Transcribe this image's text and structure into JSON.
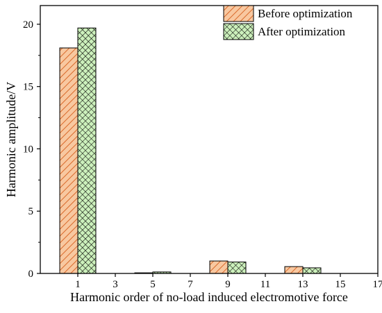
{
  "chart_data": {
    "type": "bar",
    "categories": [
      "1",
      "3",
      "5",
      "7",
      "9",
      "11",
      "13",
      "15",
      "17"
    ],
    "series": [
      {
        "name": "Before optimization",
        "values": [
          18.1,
          0,
          0.05,
          0,
          1.0,
          0,
          0.55,
          0,
          0
        ],
        "color": "#f8c8a0",
        "hatch_color": "#d9692a",
        "pattern": "diagonal"
      },
      {
        "name": "After optimization",
        "values": [
          19.7,
          0,
          0.12,
          0,
          0.92,
          0,
          0.45,
          0,
          0
        ],
        "color": "#ccf0bc",
        "hatch_color": "#000000",
        "pattern": "crosshatch"
      }
    ],
    "xlabel": "Harmonic order of no-load induced electromotive force",
    "ylabel": "Harmonic amplitude/V",
    "ylim": [
      0,
      21.5
    ],
    "yticks": [
      0,
      5,
      10,
      15,
      20
    ],
    "xlim": [
      -1,
      17
    ],
    "grid": false,
    "legend_position": "top-right"
  }
}
